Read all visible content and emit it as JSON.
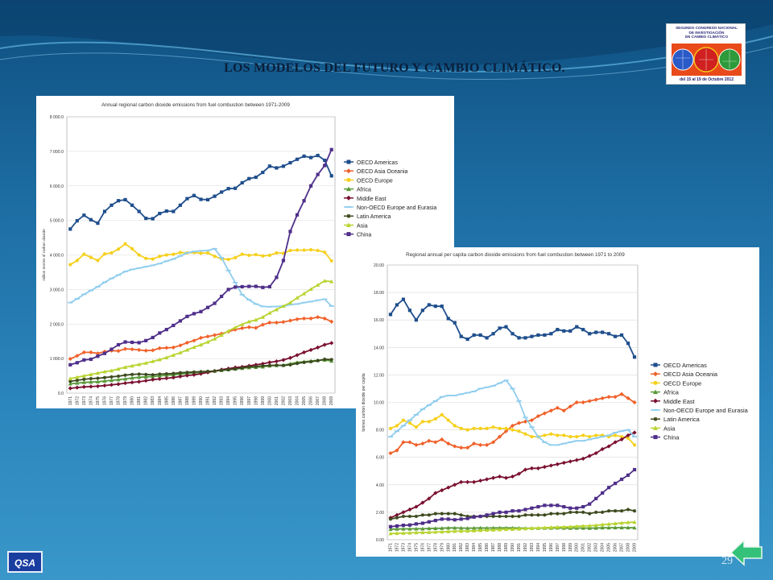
{
  "slide": {
    "title": "LOS MODELOS DEL FUTURO Y CAMBIO CLIMÁTICO.",
    "page_number": "29",
    "footer_logo": "QSA"
  },
  "logo": {
    "lines": [
      "SEGUNDO CONGRESO NACIONAL",
      "DE INVESTIGACIÓN",
      "EN CAMBIO CLIMÁTICO"
    ],
    "dates": "del 15 al 19 de Octubre 2012"
  },
  "colors": {
    "OECD Americas": "#1f4e8c",
    "OECD Asia Oceania": "#f0612a",
    "OECD Europe": "#f5d01c",
    "Africa": "#5a9a3a",
    "Middle East": "#7a1030",
    "Non-OECD Europe and Eurasia": "#8fcdee",
    "Latin America": "#3d4a1e",
    "Asia": "#b8d430",
    "China": "#4f2f8a"
  },
  "chart_data": [
    {
      "type": "line",
      "title": "Annual regional carbon dioxide emissions from fuel combustion between 1971-2009",
      "ylabel": "million tonnes of carbon dioxide",
      "ylim": [
        0,
        8000
      ],
      "yticks": [
        "0.0",
        "1 000.0",
        "2 000.0",
        "3 000.0",
        "4 000.0",
        "5 000.0",
        "6 000.0",
        "7 000.0",
        "8 000.0"
      ],
      "x": [
        1971,
        1972,
        1973,
        1974,
        1975,
        1976,
        1977,
        1978,
        1979,
        1980,
        1981,
        1982,
        1983,
        1984,
        1985,
        1986,
        1987,
        1988,
        1989,
        1990,
        1991,
        1992,
        1993,
        1994,
        1995,
        1996,
        1997,
        1998,
        1999,
        2000,
        2001,
        2002,
        2003,
        2004,
        2005,
        2006,
        2007,
        2008,
        2009
      ],
      "series": [
        {
          "name": "OECD Americas",
          "marker": "square",
          "values": [
            4750,
            4990,
            5150,
            5020,
            4920,
            5260,
            5440,
            5570,
            5600,
            5440,
            5260,
            5060,
            5050,
            5200,
            5270,
            5260,
            5440,
            5630,
            5720,
            5610,
            5600,
            5700,
            5820,
            5920,
            5930,
            6090,
            6210,
            6250,
            6390,
            6570,
            6520,
            6570,
            6670,
            6770,
            6860,
            6820,
            6880,
            6740,
            6290
          ]
        },
        {
          "name": "OECD Asia Oceania",
          "marker": "diamond",
          "values": [
            990,
            1080,
            1180,
            1180,
            1150,
            1200,
            1230,
            1220,
            1280,
            1270,
            1250,
            1230,
            1240,
            1300,
            1310,
            1320,
            1380,
            1460,
            1520,
            1600,
            1640,
            1680,
            1720,
            1780,
            1840,
            1880,
            1910,
            1890,
            1980,
            2040,
            2040,
            2060,
            2100,
            2140,
            2160,
            2160,
            2200,
            2160,
            2070
          ]
        },
        {
          "name": "OECD Europe",
          "marker": "circle",
          "values": [
            3720,
            3840,
            4020,
            3930,
            3840,
            4030,
            4060,
            4170,
            4320,
            4180,
            4000,
            3900,
            3880,
            3960,
            4000,
            4020,
            4070,
            4060,
            4070,
            4050,
            4060,
            3960,
            3890,
            3870,
            3920,
            4020,
            3990,
            4010,
            3970,
            3990,
            4060,
            4050,
            4130,
            4140,
            4140,
            4150,
            4130,
            4080,
            3830
          ]
        },
        {
          "name": "Africa",
          "marker": "triangle",
          "values": [
            270,
            290,
            310,
            320,
            330,
            350,
            370,
            390,
            410,
            440,
            460,
            470,
            480,
            500,
            520,
            530,
            550,
            570,
            590,
            600,
            620,
            640,
            660,
            680,
            700,
            720,
            740,
            750,
            760,
            790,
            800,
            810,
            850,
            890,
            910,
            930,
            950,
            960,
            930
          ]
        },
        {
          "name": "Middle East",
          "marker": "diamond",
          "values": [
            140,
            160,
            180,
            190,
            200,
            220,
            240,
            260,
            290,
            310,
            330,
            360,
            390,
            410,
            430,
            450,
            480,
            510,
            530,
            560,
            600,
            640,
            680,
            710,
            740,
            760,
            790,
            820,
            850,
            890,
            920,
            960,
            1020,
            1100,
            1180,
            1250,
            1320,
            1400,
            1450
          ]
        },
        {
          "name": "Non-OECD Europe and Eurasia",
          "marker": "dash",
          "values": [
            2620,
            2730,
            2860,
            2970,
            3080,
            3210,
            3320,
            3420,
            3520,
            3580,
            3620,
            3660,
            3700,
            3750,
            3820,
            3880,
            3970,
            4060,
            4100,
            4120,
            4130,
            4180,
            3920,
            3550,
            3200,
            2850,
            2700,
            2580,
            2510,
            2500,
            2510,
            2520,
            2560,
            2580,
            2620,
            2650,
            2690,
            2720,
            2520
          ]
        },
        {
          "name": "Latin America",
          "marker": "star",
          "values": [
            340,
            370,
            400,
            420,
            430,
            450,
            470,
            490,
            520,
            540,
            550,
            540,
            530,
            550,
            560,
            570,
            590,
            600,
            610,
            620,
            630,
            640,
            660,
            680,
            700,
            730,
            760,
            770,
            790,
            800,
            810,
            800,
            820,
            860,
            890,
            910,
            940,
            980,
            970
          ]
        },
        {
          "name": "Asia",
          "marker": "triangle",
          "values": [
            420,
            460,
            500,
            540,
            580,
            620,
            650,
            700,
            750,
            790,
            830,
            870,
            920,
            970,
            1030,
            1100,
            1170,
            1250,
            1330,
            1400,
            1480,
            1570,
            1680,
            1800,
            1900,
            1990,
            2070,
            2120,
            2200,
            2320,
            2420,
            2520,
            2620,
            2760,
            2880,
            3010,
            3130,
            3250,
            3230
          ]
        },
        {
          "name": "China",
          "marker": "square",
          "values": [
            820,
            880,
            960,
            980,
            1070,
            1150,
            1270,
            1400,
            1480,
            1470,
            1460,
            1520,
            1610,
            1740,
            1840,
            1960,
            2090,
            2220,
            2300,
            2360,
            2480,
            2600,
            2800,
            3000,
            3070,
            3080,
            3090,
            3090,
            3060,
            3080,
            3350,
            3840,
            4680,
            5160,
            5570,
            6000,
            6330,
            6590,
            7050
          ]
        }
      ]
    },
    {
      "type": "line",
      "title": "Regional annual per capita carbon dioxide emissions from fuel combustion between 1971 to 2009",
      "ylabel": "tonnes carbon dioxide per capita",
      "ylim": [
        0,
        20
      ],
      "yticks": [
        "0.00",
        "2.00",
        "4.00",
        "6.00",
        "8.00",
        "10.00",
        "12.00",
        "14.00",
        "16.00",
        "18.00",
        "20.00"
      ],
      "x": [
        1971,
        1972,
        1973,
        1974,
        1975,
        1976,
        1977,
        1978,
        1979,
        1980,
        1981,
        1982,
        1983,
        1984,
        1985,
        1986,
        1987,
        1988,
        1989,
        1990,
        1991,
        1992,
        1993,
        1994,
        1995,
        1996,
        1997,
        1998,
        1999,
        2000,
        2001,
        2002,
        2003,
        2004,
        2005,
        2006,
        2007,
        2008,
        2009
      ],
      "series": [
        {
          "name": "OECD Americas",
          "marker": "square",
          "values": [
            16.4,
            17.1,
            17.5,
            16.7,
            16.0,
            16.7,
            17.1,
            17.0,
            17.0,
            16.1,
            15.8,
            14.8,
            14.6,
            14.9,
            14.9,
            14.7,
            15.0,
            15.4,
            15.5,
            15.0,
            14.7,
            14.7,
            14.8,
            14.9,
            14.9,
            15.0,
            15.3,
            15.2,
            15.2,
            15.5,
            15.3,
            15.0,
            15.1,
            15.1,
            15.0,
            14.8,
            14.9,
            14.3,
            13.3
          ]
        },
        {
          "name": "OECD Asia Oceania",
          "marker": "diamond",
          "values": [
            6.3,
            6.5,
            7.1,
            7.1,
            6.9,
            7.0,
            7.2,
            7.1,
            7.3,
            7.0,
            6.8,
            6.7,
            6.7,
            7.0,
            6.9,
            6.9,
            7.1,
            7.5,
            7.9,
            8.3,
            8.5,
            8.6,
            8.7,
            9.0,
            9.2,
            9.4,
            9.6,
            9.4,
            9.7,
            10.0,
            10.0,
            10.1,
            10.2,
            10.3,
            10.4,
            10.4,
            10.6,
            10.3,
            10.0
          ]
        },
        {
          "name": "OECD Europe",
          "marker": "circle",
          "values": [
            8.1,
            8.3,
            8.7,
            8.5,
            8.2,
            8.6,
            8.6,
            8.8,
            9.1,
            8.7,
            8.3,
            8.1,
            8.0,
            8.1,
            8.1,
            8.1,
            8.2,
            8.1,
            8.1,
            8.0,
            7.9,
            7.7,
            7.5,
            7.5,
            7.6,
            7.7,
            7.6,
            7.6,
            7.5,
            7.5,
            7.6,
            7.5,
            7.6,
            7.6,
            7.5,
            7.6,
            7.5,
            7.4,
            6.9
          ]
        },
        {
          "name": "Africa",
          "marker": "triangle",
          "values": [
            0.76,
            0.78,
            0.79,
            0.79,
            0.8,
            0.8,
            0.82,
            0.83,
            0.84,
            0.86,
            0.86,
            0.85,
            0.84,
            0.85,
            0.86,
            0.85,
            0.86,
            0.86,
            0.86,
            0.86,
            0.85,
            0.84,
            0.84,
            0.84,
            0.85,
            0.85,
            0.86,
            0.85,
            0.84,
            0.85,
            0.85,
            0.84,
            0.85,
            0.87,
            0.87,
            0.88,
            0.88,
            0.88,
            0.87
          ]
        },
        {
          "name": "Middle East",
          "marker": "diamond",
          "values": [
            1.6,
            1.8,
            2.0,
            2.2,
            2.4,
            2.7,
            3.0,
            3.4,
            3.6,
            3.8,
            4.0,
            4.2,
            4.2,
            4.2,
            4.3,
            4.4,
            4.5,
            4.6,
            4.5,
            4.6,
            4.8,
            5.1,
            5.2,
            5.2,
            5.3,
            5.4,
            5.5,
            5.6,
            5.7,
            5.8,
            5.9,
            6.1,
            6.3,
            6.6,
            6.8,
            7.1,
            7.3,
            7.6,
            7.8
          ]
        },
        {
          "name": "Non-OECD Europe and Eurasia",
          "marker": "dash",
          "values": [
            7.5,
            7.9,
            8.3,
            8.7,
            9.1,
            9.5,
            9.8,
            10.1,
            10.4,
            10.5,
            10.5,
            10.6,
            10.7,
            10.8,
            11.0,
            11.1,
            11.2,
            11.4,
            11.6,
            11.0,
            10.1,
            8.9,
            8.2,
            7.5,
            7.1,
            6.9,
            6.9,
            7.0,
            7.1,
            7.2,
            7.2,
            7.3,
            7.4,
            7.5,
            7.6,
            7.8,
            7.9,
            8.0,
            7.5
          ]
        },
        {
          "name": "Latin America",
          "marker": "star",
          "values": [
            1.5,
            1.6,
            1.7,
            1.7,
            1.7,
            1.8,
            1.8,
            1.9,
            1.9,
            1.9,
            1.9,
            1.8,
            1.7,
            1.7,
            1.7,
            1.7,
            1.7,
            1.7,
            1.7,
            1.7,
            1.7,
            1.8,
            1.8,
            1.8,
            1.8,
            1.9,
            1.9,
            1.9,
            2.0,
            2.0,
            2.0,
            1.9,
            2.0,
            2.0,
            2.1,
            2.1,
            2.1,
            2.2,
            2.1
          ]
        },
        {
          "name": "Asia",
          "marker": "triangle",
          "values": [
            0.45,
            0.47,
            0.48,
            0.5,
            0.52,
            0.53,
            0.54,
            0.56,
            0.58,
            0.6,
            0.62,
            0.63,
            0.64,
            0.66,
            0.68,
            0.7,
            0.72,
            0.74,
            0.76,
            0.77,
            0.79,
            0.81,
            0.84,
            0.86,
            0.88,
            0.9,
            0.92,
            0.93,
            0.95,
            0.98,
            1.0,
            1.02,
            1.05,
            1.1,
            1.14,
            1.18,
            1.22,
            1.26,
            1.28
          ]
        },
        {
          "name": "China",
          "marker": "square",
          "values": [
            0.95,
            1.0,
            1.05,
            1.07,
            1.15,
            1.2,
            1.3,
            1.4,
            1.5,
            1.5,
            1.45,
            1.5,
            1.55,
            1.65,
            1.7,
            1.8,
            1.9,
            2.0,
            2.0,
            2.1,
            2.1,
            2.2,
            2.3,
            2.4,
            2.5,
            2.5,
            2.5,
            2.4,
            2.3,
            2.3,
            2.4,
            2.6,
            3.0,
            3.4,
            3.8,
            4.1,
            4.4,
            4.7,
            5.1
          ]
        }
      ]
    }
  ]
}
